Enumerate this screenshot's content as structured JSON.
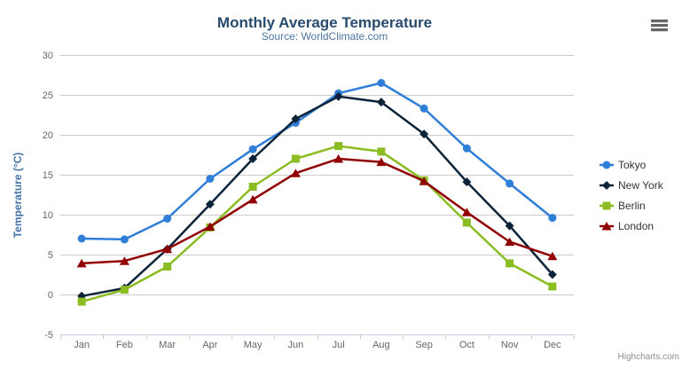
{
  "credits_label": "Highcharts.com",
  "export_menu": {
    "icon": "hamburger-menu-icon"
  },
  "chart_data": {
    "type": "line",
    "title": "Monthly Average Temperature",
    "subtitle": "Source: WorldClimate.com",
    "categories": [
      "Jan",
      "Feb",
      "Mar",
      "Apr",
      "May",
      "Jun",
      "Jul",
      "Aug",
      "Sep",
      "Oct",
      "Nov",
      "Dec"
    ],
    "xlabel": "",
    "ylabel": "Temperature (°C)",
    "ylim": [
      -5,
      30
    ],
    "yticks": [
      30,
      25,
      20,
      15,
      10,
      5,
      0,
      -5
    ],
    "grid": true,
    "legend_position": "right",
    "axis_colors": {
      "grid": "#cccccc",
      "axis_line": "#c0d0e0",
      "tick": "#c0d0e0",
      "label": "#666666"
    },
    "series": [
      {
        "name": "Tokyo",
        "color": "#2f7ed8",
        "marker": "circle",
        "values": [
          7.0,
          6.9,
          9.5,
          14.5,
          18.2,
          21.5,
          25.2,
          26.5,
          23.3,
          18.3,
          13.9,
          9.6
        ]
      },
      {
        "name": "New York",
        "color": "#0d233a",
        "marker": "diamond",
        "values": [
          -0.2,
          0.8,
          5.7,
          11.3,
          17.0,
          22.0,
          24.8,
          24.1,
          20.1,
          14.1,
          8.6,
          2.5
        ]
      },
      {
        "name": "Berlin",
        "color": "#8bbc21",
        "marker": "square",
        "values": [
          -0.9,
          0.6,
          3.5,
          8.4,
          13.5,
          17.0,
          18.6,
          17.9,
          14.3,
          9.0,
          3.9,
          1.0
        ]
      },
      {
        "name": "London",
        "color": "#910000",
        "marker": "triangle",
        "values": [
          3.9,
          4.2,
          5.7,
          8.5,
          11.9,
          15.2,
          17.0,
          16.6,
          14.2,
          10.3,
          6.6,
          4.8
        ]
      }
    ]
  }
}
